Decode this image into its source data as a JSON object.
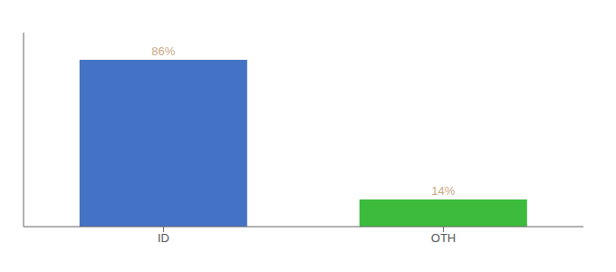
{
  "chart_data": {
    "type": "bar",
    "categories": [
      "ID",
      "OTH"
    ],
    "values": [
      86,
      14
    ],
    "value_labels": [
      "86%",
      "14%"
    ],
    "colors": [
      "#4472C4",
      "#3DBB3D"
    ],
    "ylim": [
      0,
      100
    ],
    "grid": false,
    "tick_labels": "x",
    "data_labels": true
  }
}
